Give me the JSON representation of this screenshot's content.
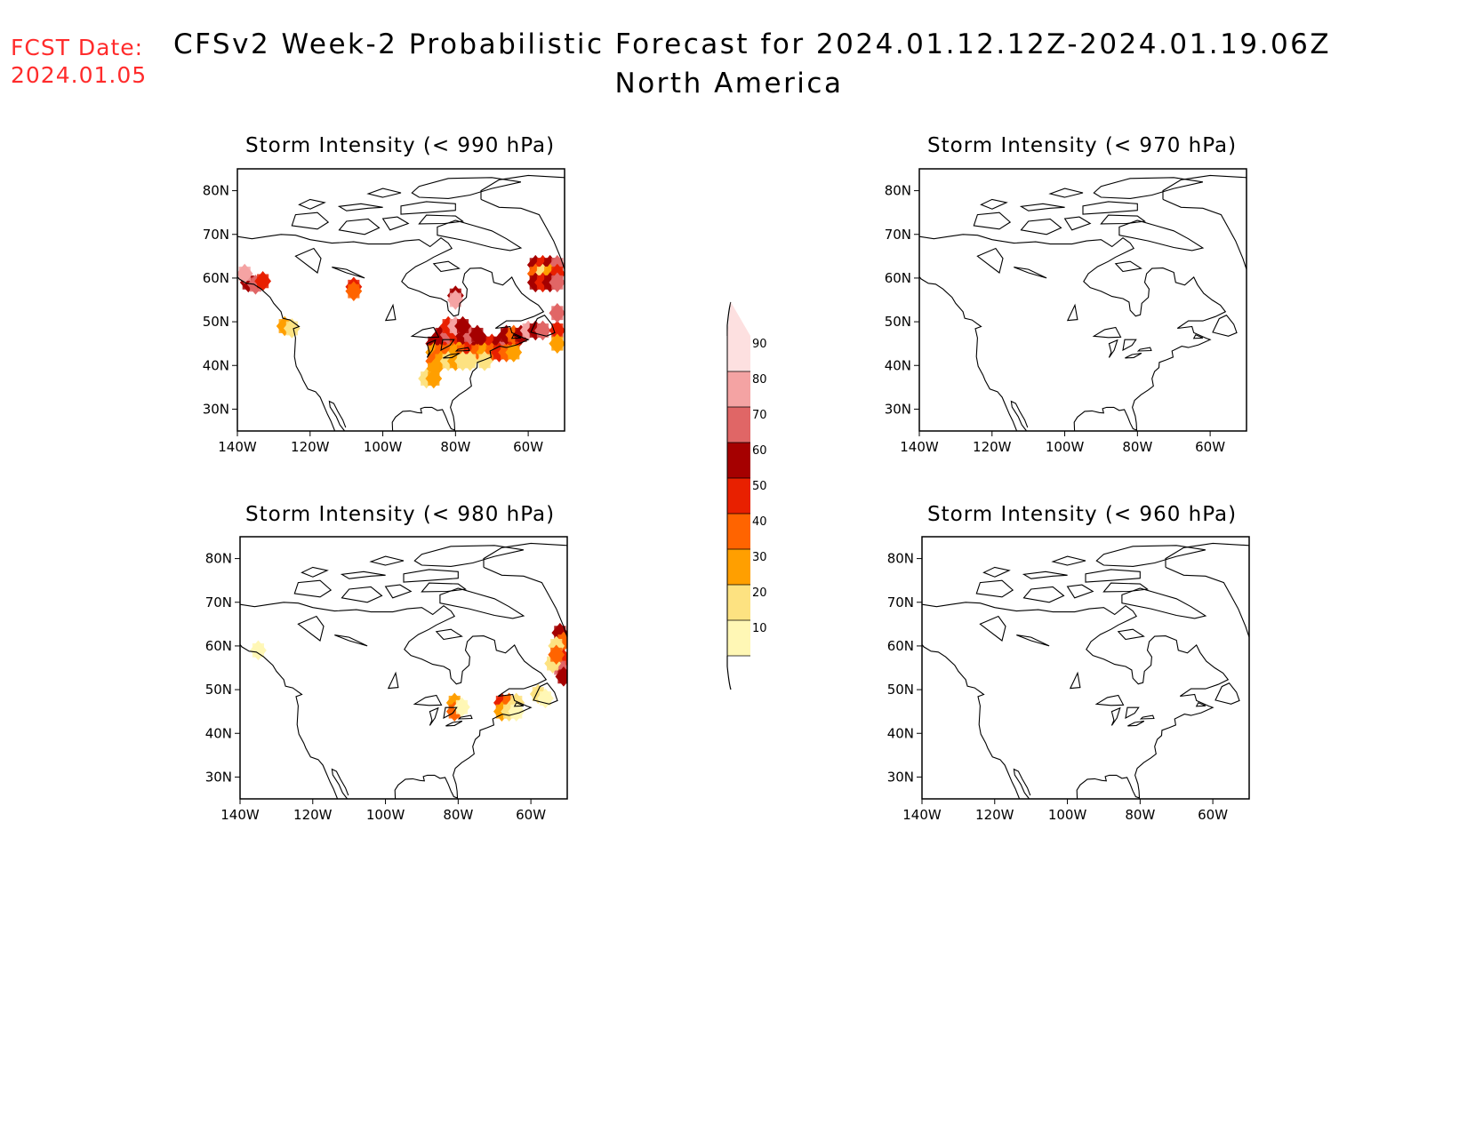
{
  "fcst": {
    "line1": "FCST Date:",
    "line2": "2024.01.05"
  },
  "title": {
    "main": "CFSv2 Week-2 Probabilistic Forecast for 2024.01.12.12Z-2024.01.19.06Z",
    "region": "North America"
  },
  "axes": {
    "lat_labels": [
      "80N",
      "70N",
      "60N",
      "50N",
      "40N",
      "30N"
    ],
    "lon_labels": [
      "140W",
      "120W",
      "100W",
      "80W",
      "60W"
    ]
  },
  "panels": [
    {
      "id": "p990",
      "title": "Storm Intensity (< 990 hPa)",
      "has_data": true
    },
    {
      "id": "p970",
      "title": "Storm Intensity (< 970 hPa)",
      "has_data": false
    },
    {
      "id": "p980",
      "title": "Storm Intensity (< 980 hPa)",
      "has_data": true
    },
    {
      "id": "p960",
      "title": "Storm Intensity (< 960 hPa)",
      "has_data": false
    }
  ],
  "colorbar": {
    "levels": [
      "10",
      "20",
      "30",
      "40",
      "50",
      "60",
      "70",
      "80",
      "90"
    ],
    "colors": [
      "#fff7b5",
      "#fde281",
      "#ff9f00",
      "#ff6400",
      "#e82000",
      "#a50000",
      "#e06666",
      "#f4a3a3",
      "#fde0e0"
    ]
  }
}
